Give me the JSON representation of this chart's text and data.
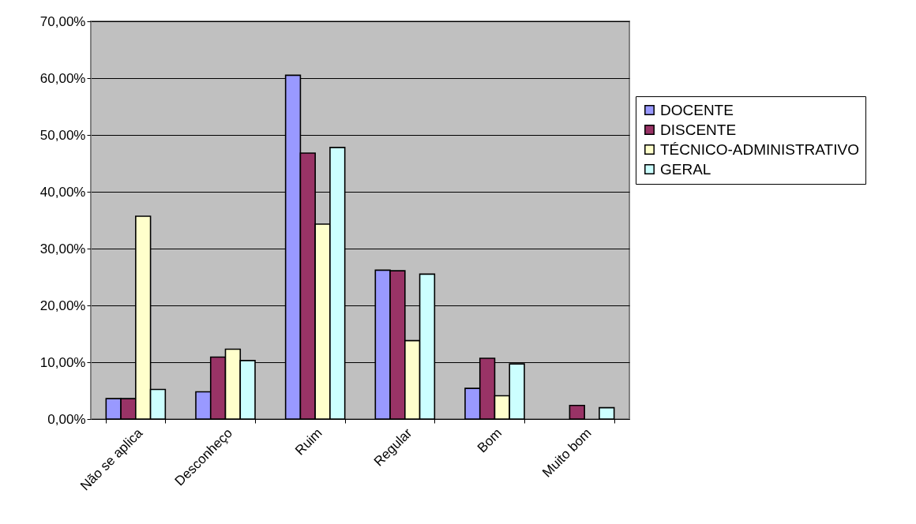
{
  "chart_data": {
    "type": "bar",
    "categories": [
      "Não se aplica",
      "Desconheço",
      "Ruim",
      "Regular",
      "Bom",
      "Muito bom"
    ],
    "series": [
      {
        "name": "DOCENTE",
        "color": "#9999ff",
        "values": [
          3.6,
          4.8,
          60.5,
          26.2,
          5.4,
          null
        ]
      },
      {
        "name": "DISCENTE",
        "color": "#993366",
        "values": [
          3.6,
          10.9,
          46.8,
          26.1,
          10.7,
          2.4
        ]
      },
      {
        "name": "TÉCNICO-ADMINISTRATIVO",
        "color": "#ffffcc",
        "values": [
          35.7,
          12.3,
          34.3,
          13.8,
          4.1,
          null
        ]
      },
      {
        "name": "GERAL",
        "color": "#ccffff",
        "values": [
          5.2,
          10.3,
          47.8,
          25.5,
          9.7,
          2.0
        ]
      }
    ],
    "ylim": [
      0,
      70
    ],
    "yticks": [
      {
        "value": 0,
        "label": "0,00%"
      },
      {
        "value": 10,
        "label": "10,00%"
      },
      {
        "value": 20,
        "label": "20,00%"
      },
      {
        "value": 30,
        "label": "30,00%"
      },
      {
        "value": 40,
        "label": "40,00%"
      },
      {
        "value": 50,
        "label": "50,00%"
      },
      {
        "value": 60,
        "label": "60,00%"
      },
      {
        "value": 70,
        "label": "70,00%"
      }
    ],
    "grid": "y",
    "legend": "right"
  }
}
